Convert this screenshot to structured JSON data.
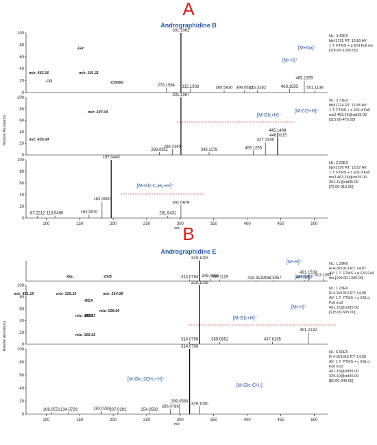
{
  "chart_data": [
    {
      "type": "mass-spectrum-stack",
      "panel_letter": "A",
      "title": "Andrographidine B",
      "xlabel": "m/z",
      "ylabel": "Relative Abundance",
      "xlim": [
        70,
        520
      ],
      "xticks": [
        100,
        150,
        200,
        250,
        300,
        350,
        400,
        450,
        500
      ],
      "yticks": [
        0,
        20,
        40,
        60,
        80,
        100
      ],
      "scheme_labels": [
        "-Glc",
        "-CO",
        "-C3H6O",
        "m/z: 463.16",
        "m/z: 301.11",
        "m/z: 435.04",
        "m/z: 197.04"
      ],
      "spectra": [
        {
          "info": [
            "NL: 4.42E6",
            "hb#1715 RT: 13.80 AV:",
            "1 T: FTMS + p ESI Full ms",
            "[100.00-1200.00]"
          ],
          "peaks": [
            {
              "mz": 279.1584,
              "rel": 8,
              "label": "279.1584"
            },
            {
              "mz": 301.1062,
              "rel": 100,
              "label": "301.1062"
            },
            {
              "mz": 315.1938,
              "rel": 6,
              "label": "315.1938"
            },
            {
              "mz": 365.583,
              "rel": 4,
              "label": "365.5830"
            },
            {
              "mz": 396.0513,
              "rel": 4,
              "label": "396.0513"
            },
            {
              "mz": 415.3282,
              "rel": 4,
              "label": "415.3282"
            },
            {
              "mz": 463.1583,
              "rel": 6,
              "label": "463.1583"
            },
            {
              "mz": 485.1399,
              "rel": 20,
              "label": "485.1399"
            },
            {
              "mz": 501.1138,
              "rel": 4,
              "label": "501.1138"
            }
          ],
          "annotations": [
            "[M+H]⁺",
            "[M+Na]⁺"
          ]
        },
        {
          "info": [
            "NL: 3.71E3",
            "hb#1724 RT: 13.86 AV:",
            "1 T: FTMS + c ESI d Full",
            "ms2 463.16@cid35.00",
            "[115.00-475.00]"
          ],
          "peaks": [
            {
              "mz": 269.0811,
              "rel": 5,
              "label": "269.0811"
            },
            {
              "mz": 288.2385,
              "rel": 10,
              "label": "288.2385"
            },
            {
              "mz": 301.1067,
              "rel": 100,
              "label": "301.1067"
            },
            {
              "mz": 343.1178,
              "rel": 5,
              "label": "343.1178"
            },
            {
              "mz": 409.1255,
              "rel": 8,
              "label": "409.1255"
            },
            {
              "mz": 427.1336,
              "rel": 22,
              "label": "427.1336"
            },
            {
              "mz": 445.1498,
              "rel": 38,
              "label": "445.1498"
            },
            {
              "mz": 446.0215,
              "rel": 30,
              "label": "446.0215"
            }
          ],
          "annotations": [
            "[M-Glc+H]⁺",
            "[M-CO+H]⁺"
          ]
        },
        {
          "info": [
            "NL: 2.23E3",
            "hb#1726 RT: 13.87 AV:",
            "1 T: FTMS + c ESI d Full",
            "ms3 463.16@cid35.00",
            "301.11@cid35.00",
            "[70.00-315.00]"
          ],
          "peaks": [
            {
              "mz": 87.2212,
              "rel": 4,
              "label": "87.2212"
            },
            {
              "mz": 113.049,
              "rel": 4,
              "label": "113.0490"
            },
            {
              "mz": 163.997,
              "rel": 6,
              "label": "163.9970"
            },
            {
              "mz": 183.39,
              "rel": 28,
              "label": "183.3900"
            },
            {
              "mz": 197.044,
              "rel": 100,
              "label": "197.0440"
            },
            {
              "mz": 281.5431,
              "rel": 4,
              "label": "281.5431"
            },
            {
              "mz": 301.0979,
              "rel": 22,
              "label": "301.0979"
            }
          ],
          "annotations": [
            "[M-Glc-C₃H₆+H]⁺"
          ]
        }
      ]
    },
    {
      "type": "mass-spectrum-stack",
      "panel_letter": "B",
      "title": "Andrographidine E",
      "xlabel": "m/z",
      "ylabel": "Relative Abundance",
      "xlim": [
        70,
        520
      ],
      "xticks": [
        100,
        150,
        200,
        250,
        300,
        350,
        400,
        450,
        500
      ],
      "yticks": [
        0,
        20,
        40,
        60,
        80,
        100
      ],
      "scheme_labels": [
        "-Glc",
        "-CH3",
        "-RDA",
        "-H2O",
        "m/z: 491.15",
        "m/z: 329.10",
        "m/z: 314.08",
        "m/z: 299.06",
        "m/z: 183.03",
        "m/z: 165.02"
      ],
      "spectra": [
        {
          "info": [
            "NL: 1.39E6",
            "R-4-3#1913 RT: 14.97",
            "AV: 1 T: FTMS + p ESI Full",
            "ms [100.00-1200.00]"
          ],
          "peaks": [
            {
              "mz": 314.0784,
              "rel": 8,
              "label": "314.0784"
            },
            {
              "mz": 329.1015,
              "rel": 100,
              "label": "329.1015"
            },
            {
              "mz": 345.096,
              "rel": 14,
              "label": "345.0960"
            },
            {
              "mz": 359.1119,
              "rel": 8,
              "label": "359.1119"
            },
            {
              "mz": 413.3132,
              "rel": 4,
              "label": "413.3132"
            },
            {
              "mz": 438.3057,
              "rel": 4,
              "label": "438.3057"
            },
            {
              "mz": 485.3257,
              "rel": 6,
              "label": "485.3257"
            },
            {
              "mz": 491.1539,
              "rel": 30,
              "label": "491.1539"
            },
            {
              "mz": 513.1351,
              "rel": 16,
              "label": "513.1351"
            }
          ],
          "annotations": [
            "[M+H]⁺",
            "[M+Na]⁺"
          ]
        },
        {
          "info": [
            "NL: 1.23E6",
            "R-4-3#1914 RT: 14.98",
            "AV: 1 T: FTMS + c ESI d",
            "Full ms2",
            "491.15@cid35.00",
            "[125.00-505.00]"
          ],
          "peaks": [
            {
              "mz": 314.0799,
              "rel": 4,
              "label": "314.0799"
            },
            {
              "mz": 329.1028,
              "rel": 100,
              "label": "329.1028"
            },
            {
              "mz": 359.0652,
              "rel": 4,
              "label": "359.0652"
            },
            {
              "mz": 437.6195,
              "rel": 4,
              "label": "437.6195"
            },
            {
              "mz": 491.2132,
              "rel": 20,
              "label": "491.2132"
            }
          ],
          "annotations": [
            "[M-Glc+H]⁺",
            "[M+H]⁺"
          ]
        },
        {
          "info": [
            "NL: 6.90E5",
            "R-4-3#1916 RT: 14.99",
            "AV: 1 T: FTMS + c ESI d",
            "Full ms3",
            "491.15@cid35.00",
            "329.10@cid35.00",
            "[80.00-340.00]"
          ],
          "peaks": [
            {
              "mz": 108.0571,
              "rel": 3,
              "label": "108.0571"
            },
            {
              "mz": 134.0729,
              "rel": 3,
              "label": "134.0729"
            },
            {
              "mz": 183.0293,
              "rel": 5,
              "label": "183.0293"
            },
            {
              "mz": 207.0292,
              "rel": 3,
              "label": "207.0292"
            },
            {
              "mz": 254.0582,
              "rel": 3,
              "label": "254.0582"
            },
            {
              "mz": 285.0786,
              "rel": 8,
              "label": "285.0786"
            },
            {
              "mz": 299.0569,
              "rel": 16,
              "label": "299.0569"
            },
            {
              "mz": 314.0796,
              "rel": 100,
              "label": "314.0796"
            },
            {
              "mz": 329.103,
              "rel": 12,
              "label": "329.1030"
            }
          ],
          "annotations": [
            "[M-Glc-2CH₃+H]⁺",
            "[M-Glc-CH₃]"
          ]
        }
      ]
    }
  ]
}
